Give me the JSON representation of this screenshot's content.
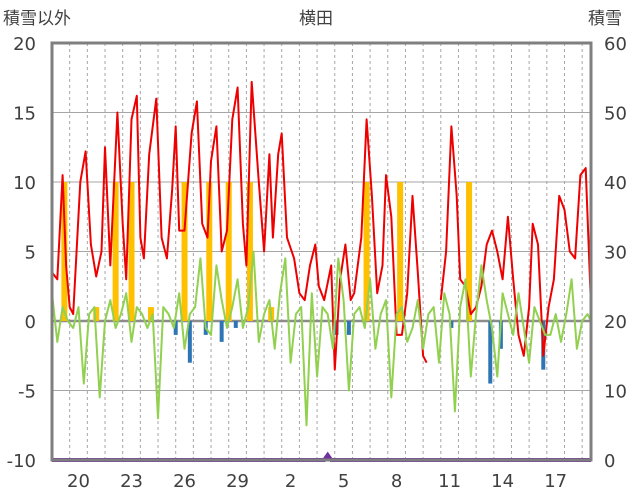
{
  "chart_data": {
    "type": "line",
    "title": "横田",
    "ylabel_left": "積雪以外",
    "ylabel_right": "積雪",
    "ylim_left": [
      -10,
      20
    ],
    "yticks_left": [
      -10,
      -5,
      0,
      5,
      10,
      15,
      20
    ],
    "ylim_right": [
      0,
      60
    ],
    "yticks_right": [
      0,
      10,
      20,
      30,
      40,
      50,
      60
    ],
    "x_tick_labels": [
      "20",
      "23",
      "26",
      "29",
      "2",
      "5",
      "8",
      "11",
      "14",
      "17"
    ],
    "x_range_days": [
      0,
      30.5
    ],
    "grid": "dashed vertical daily lines, solid horizontal lines",
    "colors": {
      "temperature_max": "#ee0000",
      "temperature_min": "#92d050",
      "snowfall": "#ffc000",
      "precip_negative": "#2e75b6",
      "snow_depth": "#7030a0",
      "frame": "#7f7f7f"
    },
    "series": [
      {
        "color": "#ee0000",
        "x": [
          0,
          0.3,
          0.6,
          0.8,
          1.0,
          1.2,
          1.6,
          1.9,
          2.2,
          2.5,
          2.8,
          3.0,
          3.3,
          3.7,
          4.0,
          4.2,
          4.5,
          4.8,
          5.0,
          5.2,
          5.5,
          5.9,
          6.2,
          6.5,
          6.8,
          7.0,
          7.2,
          7.5,
          7.9,
          8.2,
          8.5,
          8.8,
          9.0,
          9.3,
          9.6,
          9.9,
          10.2,
          10.5,
          10.8,
          11.0,
          11.3,
          11.7,
          12.0,
          12.3,
          12.5,
          12.8,
          13.0,
          13.3,
          13.7,
          14.0,
          14.3,
          14.6,
          14.9,
          15.1,
          15.4,
          15.8,
          16.0,
          16.3,
          16.6,
          16.9,
          17.1,
          17.5,
          17.8,
          18.1,
          18.4,
          18.7,
          18.9,
          19.2,
          19.5,
          19.8,
          20.1,
          20.4,
          20.7,
          21.0,
          21.2
        ],
        "y": [
          3.5,
          3.0,
          10.5,
          4.0,
          1.0,
          0.5,
          10.0,
          12.2,
          5.5,
          3.2,
          5.0,
          12.5,
          4.0,
          15.0,
          7.0,
          3.0,
          14.5,
          16.2,
          6.0,
          4.5,
          12.0,
          16.0,
          6.0,
          4.5,
          9.5,
          14.0,
          6.5,
          6.5,
          13.5,
          15.8,
          7.0,
          6.0,
          11.5,
          14.0,
          5.0,
          6.5,
          14.5,
          16.8,
          7.0,
          4.0,
          17.2,
          10.0,
          5.0,
          12.0,
          6.0,
          12.0,
          13.5,
          6.0,
          4.5,
          2.0,
          1.5,
          4.0,
          5.5,
          2.5,
          1.5,
          4.0,
          -3.5,
          3.0,
          5.5,
          1.5,
          2.0,
          6.0,
          14.5,
          9.0,
          2.0,
          4.0,
          10.5,
          7.5,
          -1.0,
          -1.0,
          2.0,
          9.0,
          3.5,
          -2.5,
          -3.0
        ]
      },
      {
        "color": "#ee0000",
        "x": [
          22.0,
          22.3,
          22.6,
          22.9,
          23.1,
          23.4,
          23.7,
          24.0,
          24.3,
          24.6,
          24.9,
          25.2,
          25.5,
          25.8,
          26.1,
          26.4,
          26.7,
          27.0,
          27.2,
          27.5,
          27.8,
          28.1,
          28.4,
          28.7,
          29.0,
          29.3,
          29.6,
          29.9,
          30.2,
          30.5
        ],
        "y": [
          1.5,
          5.0,
          14.0,
          9.0,
          3.0,
          2.5,
          0.5,
          1.0,
          2.5,
          5.5,
          6.5,
          5.0,
          3.0,
          7.5,
          3.0,
          -1.0,
          -2.5,
          1.0,
          7.0,
          5.5,
          -2.5,
          1.0,
          3.0,
          9.0,
          8.0,
          5.0,
          4.5,
          10.5,
          11.0,
          1.0
        ]
      },
      {
        "color": "#92d050",
        "x": [
          0,
          0.3,
          0.6,
          0.9,
          1.2,
          1.5,
          1.8,
          2.1,
          2.4,
          2.7,
          3.0,
          3.3,
          3.6,
          3.9,
          4.2,
          4.5,
          4.8,
          5.1,
          5.4,
          5.7,
          6.0,
          6.3,
          6.6,
          6.9,
          7.2,
          7.5,
          7.8,
          8.1,
          8.4,
          8.7,
          9.0,
          9.3,
          9.6,
          9.9,
          10.2,
          10.5,
          10.8,
          11.1,
          11.4,
          11.7,
          12.0,
          12.3,
          12.6,
          12.9,
          13.2,
          13.5,
          13.8,
          14.1,
          14.4,
          14.7,
          15.0,
          15.3,
          15.6,
          15.9,
          16.2,
          16.5,
          16.8,
          17.1,
          17.4,
          17.7,
          18.0,
          18.3,
          18.6,
          18.9,
          19.2,
          19.5,
          19.8,
          20.1,
          20.4,
          20.7,
          21.0,
          21.3,
          21.6,
          21.9,
          22.2,
          22.5,
          22.8,
          23.1,
          23.4,
          23.7,
          24.0,
          24.3,
          24.6,
          24.9,
          25.2,
          25.5,
          25.8,
          26.1,
          26.4,
          26.7,
          27.0,
          27.3,
          27.6,
          27.9,
          28.2,
          28.5,
          28.8,
          29.1,
          29.4,
          29.7,
          30.0,
          30.3,
          30.5
        ],
        "y": [
          2,
          -1.5,
          1,
          0,
          -0.5,
          1,
          -4.5,
          0.5,
          1,
          -5.5,
          0,
          1.5,
          -0.5,
          0.5,
          2,
          -1.5,
          1,
          0.5,
          -0.5,
          0.5,
          -7,
          1,
          0.5,
          -0.5,
          2,
          -2,
          0.5,
          1,
          4.5,
          -0.5,
          -1,
          4,
          1.5,
          -0.5,
          1,
          3,
          -0.5,
          1,
          5,
          -1.5,
          0.5,
          1.5,
          -2,
          2,
          4.5,
          -3,
          0.5,
          1,
          -7.5,
          2,
          -4,
          1,
          0.5,
          -2,
          4.5,
          1.5,
          -5,
          0.5,
          1,
          -0.5,
          3,
          -2,
          0.5,
          1.5,
          -5.5,
          0.5,
          1,
          -1.5,
          -0.5,
          1.5,
          -2,
          0.5,
          1,
          -3,
          2,
          0.5,
          -6.5,
          1,
          3,
          -4,
          0.5,
          4,
          1.5,
          -0.5,
          -4,
          2,
          0.5,
          -1,
          2,
          -0.5,
          -3,
          1,
          0,
          -1,
          -1,
          0.5,
          -1.5,
          0.5,
          3,
          -2,
          0,
          0.5,
          0
        ]
      }
    ],
    "snowfall_bars": {
      "color": "#ffc000",
      "x": [
        0.7,
        2.5,
        3.6,
        4.5,
        5.6,
        7.5,
        8.9,
        10.0,
        11.2,
        12.4,
        17.8,
        19.7,
        23.6
      ],
      "values": [
        10,
        1,
        10,
        10,
        1,
        10,
        10,
        10,
        10,
        1,
        10,
        10,
        10
      ]
    },
    "negative_bars": {
      "color": "#2e75b6",
      "x": [
        7.0,
        7.8,
        8.7,
        9.6,
        10.4,
        16.1,
        16.8,
        22.6,
        24.8,
        25.4,
        27.8
      ],
      "values": [
        -1,
        -3,
        -1,
        -1.5,
        -0.5,
        -1,
        -1,
        -0.5,
        -4.5,
        -2,
        -3.5
      ]
    },
    "snow_depth": {
      "color": "#7030a0",
      "x": [
        0,
        15.4,
        15.6,
        15.8,
        30.5
      ],
      "values": [
        0,
        0,
        0.7,
        0,
        0
      ]
    }
  }
}
